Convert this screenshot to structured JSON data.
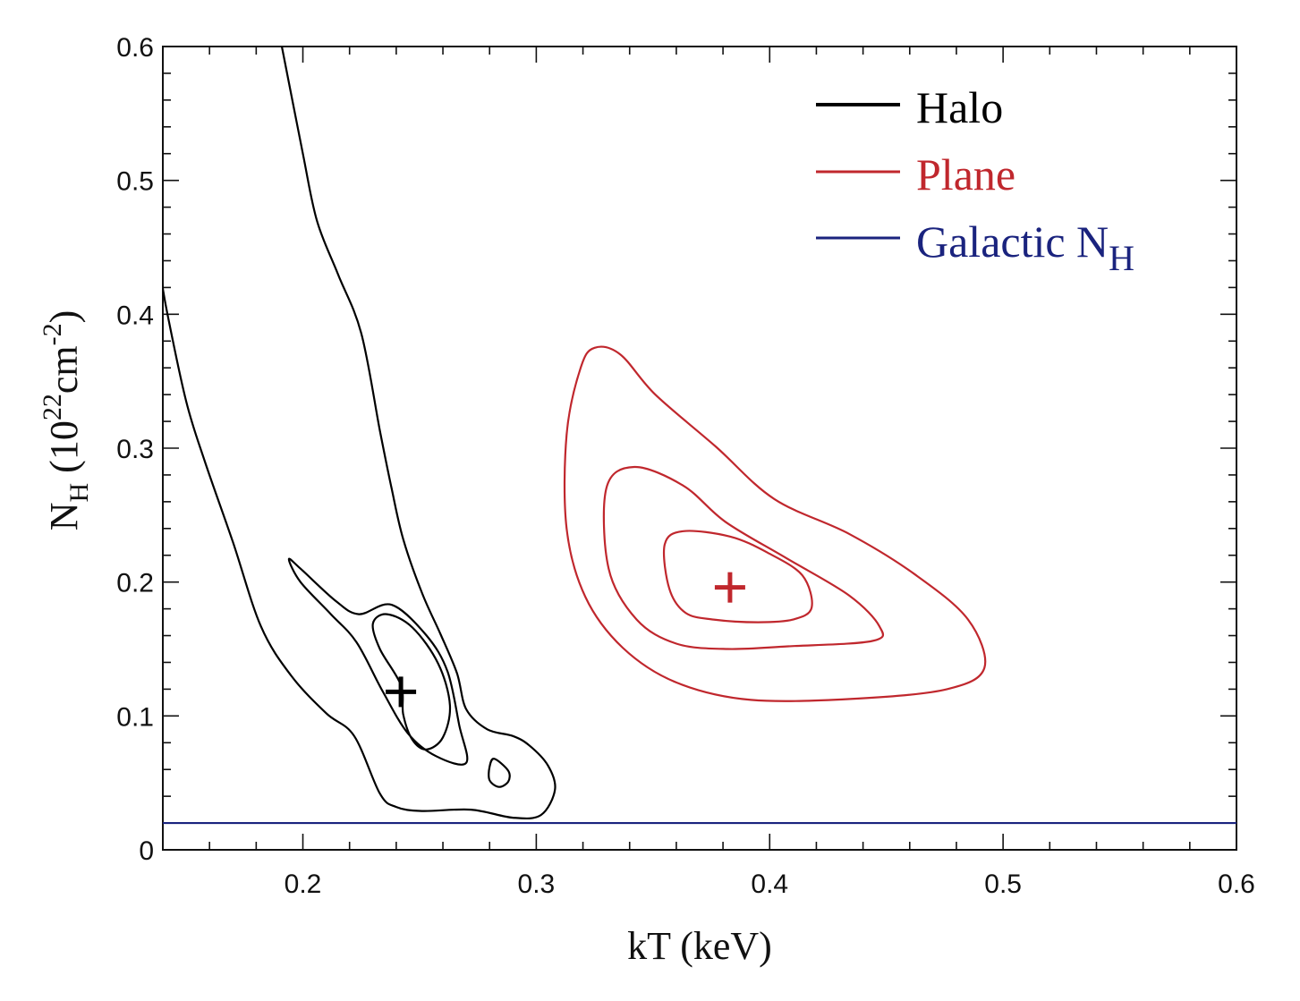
{
  "chart_data": {
    "type": "contour",
    "xlabel": "kT (keV)",
    "ylabel": {
      "main": "N",
      "sub": "H",
      "unit_open": " (10",
      "unit_exp1": "22",
      "unit_mid": "cm",
      "unit_exp2": "-2",
      "unit_close": ")"
    },
    "xlim": [
      0.14,
      0.6
    ],
    "ylim": [
      0,
      0.6
    ],
    "x_ticks": [
      0.2,
      0.3,
      0.4,
      0.5,
      0.6
    ],
    "x_tick_labels": [
      "0.2",
      "0.3",
      "0.4",
      "0.5",
      "0.6"
    ],
    "y_ticks": [
      0,
      0.1,
      0.2,
      0.3,
      0.4,
      0.5,
      0.6
    ],
    "y_tick_labels": [
      "0",
      "0.1",
      "0.2",
      "0.3",
      "0.4",
      "0.5",
      "0.6"
    ],
    "grid": false,
    "legend_position": "top-right",
    "legend": [
      {
        "label": "Halo",
        "color": "#000000"
      },
      {
        "label": "Plane",
        "color": "#c0272d"
      },
      {
        "label": "Galactic N",
        "sub": "H",
        "color": "#1a237e"
      }
    ],
    "series": [
      {
        "name": "Halo",
        "color": "#000000",
        "best_fit": {
          "x": 0.242,
          "y": 0.118
        },
        "contours": [
          [
            [
              0.242,
              0.123
            ],
            [
              0.233,
              0.15
            ],
            [
              0.23,
              0.169
            ],
            [
              0.236,
              0.176
            ],
            [
              0.247,
              0.166
            ],
            [
              0.258,
              0.139
            ],
            [
              0.263,
              0.108
            ],
            [
              0.26,
              0.084
            ],
            [
              0.253,
              0.075
            ],
            [
              0.247,
              0.082
            ],
            [
              0.243,
              0.101
            ],
            [
              0.242,
              0.123
            ]
          ],
          [
            [
              0.224,
              0.176
            ],
            [
              0.214,
              0.186
            ],
            [
              0.199,
              0.21
            ],
            [
              0.194,
              0.217
            ],
            [
              0.199,
              0.2
            ],
            [
              0.212,
              0.176
            ],
            [
              0.223,
              0.155
            ],
            [
              0.234,
              0.119
            ],
            [
              0.245,
              0.087
            ],
            [
              0.257,
              0.07
            ],
            [
              0.27,
              0.065
            ],
            [
              0.267,
              0.093
            ],
            [
              0.262,
              0.133
            ],
            [
              0.253,
              0.16
            ],
            [
              0.238,
              0.183
            ],
            [
              0.224,
              0.176
            ]
          ],
          [
            [
              0.191,
              0.6
            ],
            [
              0.2,
              0.52
            ],
            [
              0.206,
              0.47
            ],
            [
              0.215,
              0.43
            ],
            [
              0.225,
              0.386
            ],
            [
              0.233,
              0.313
            ],
            [
              0.238,
              0.27
            ],
            [
              0.243,
              0.232
            ],
            [
              0.251,
              0.192
            ],
            [
              0.259,
              0.161
            ],
            [
              0.266,
              0.132
            ],
            [
              0.27,
              0.105
            ],
            [
              0.279,
              0.09
            ],
            [
              0.29,
              0.085
            ],
            [
              0.297,
              0.078
            ],
            [
              0.305,
              0.063
            ],
            [
              0.308,
              0.045
            ],
            [
              0.302,
              0.026
            ],
            [
              0.29,
              0.024
            ],
            [
              0.272,
              0.03
            ],
            [
              0.251,
              0.029
            ],
            [
              0.24,
              0.032
            ],
            [
              0.233,
              0.042
            ],
            [
              0.222,
              0.085
            ],
            [
              0.21,
              0.102
            ],
            [
              0.195,
              0.13
            ],
            [
              0.182,
              0.167
            ],
            [
              0.17,
              0.23
            ],
            [
              0.158,
              0.29
            ],
            [
              0.15,
              0.335
            ],
            [
              0.142,
              0.4
            ],
            [
              0.139,
              0.43
            ]
          ],
          [
            [
              0.282,
              0.068
            ],
            [
              0.288,
              0.059
            ],
            [
              0.288,
              0.051
            ],
            [
              0.284,
              0.047
            ],
            [
              0.28,
              0.052
            ],
            [
              0.28,
              0.062
            ],
            [
              0.282,
              0.068
            ]
          ]
        ]
      },
      {
        "name": "Plane",
        "color": "#c0272d",
        "best_fit": {
          "x": 0.383,
          "y": 0.196
        },
        "contours": [
          [
            [
              0.363,
              0.238
            ],
            [
              0.355,
              0.228
            ],
            [
              0.357,
              0.195
            ],
            [
              0.364,
              0.177
            ],
            [
              0.376,
              0.172
            ],
            [
              0.395,
              0.17
            ],
            [
              0.41,
              0.172
            ],
            [
              0.418,
              0.181
            ],
            [
              0.414,
              0.205
            ],
            [
              0.399,
              0.222
            ],
            [
              0.383,
              0.234
            ],
            [
              0.363,
              0.238
            ]
          ],
          [
            [
              0.342,
              0.286
            ],
            [
              0.33,
              0.27
            ],
            [
              0.331,
              0.21
            ],
            [
              0.343,
              0.172
            ],
            [
              0.36,
              0.154
            ],
            [
              0.382,
              0.15
            ],
            [
              0.408,
              0.152
            ],
            [
              0.444,
              0.156
            ],
            [
              0.447,
              0.167
            ],
            [
              0.434,
              0.19
            ],
            [
              0.407,
              0.218
            ],
            [
              0.381,
              0.245
            ],
            [
              0.363,
              0.272
            ],
            [
              0.342,
              0.286
            ]
          ],
          [
            [
              0.325,
              0.375
            ],
            [
              0.319,
              0.36
            ],
            [
              0.313,
              0.31
            ],
            [
              0.313,
              0.24
            ],
            [
              0.321,
              0.189
            ],
            [
              0.337,
              0.151
            ],
            [
              0.36,
              0.125
            ],
            [
              0.392,
              0.112
            ],
            [
              0.438,
              0.113
            ],
            [
              0.476,
              0.12
            ],
            [
              0.492,
              0.136
            ],
            [
              0.485,
              0.172
            ],
            [
              0.462,
              0.206
            ],
            [
              0.434,
              0.236
            ],
            [
              0.402,
              0.262
            ],
            [
              0.377,
              0.301
            ],
            [
              0.351,
              0.34
            ],
            [
              0.336,
              0.37
            ],
            [
              0.325,
              0.375
            ]
          ]
        ]
      },
      {
        "name": "Galactic N_H",
        "color": "#1a237e",
        "value": 0.02
      }
    ]
  }
}
